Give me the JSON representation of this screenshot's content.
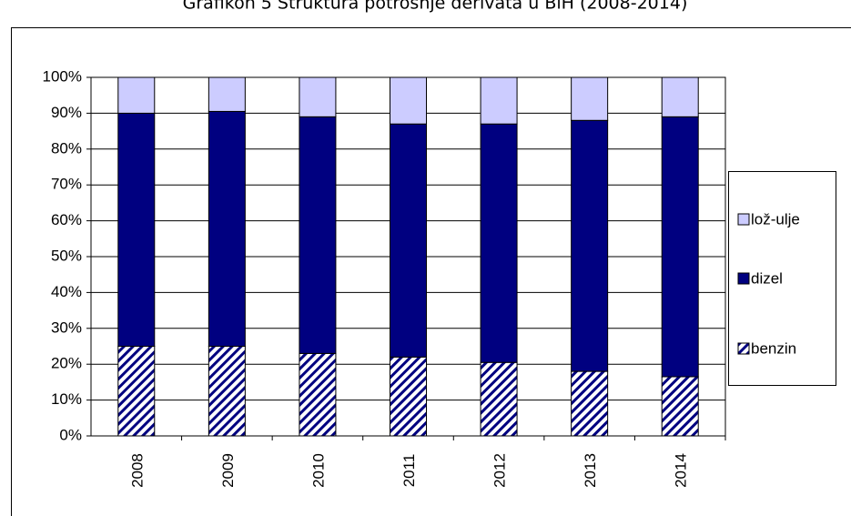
{
  "chart_data": {
    "type": "bar",
    "stacked": true,
    "title": "Grafikon 5 Struktura potrošnje derivata u BiH (2008-2014)",
    "categories": [
      "2008",
      "2009",
      "2010",
      "2011",
      "2012",
      "2013",
      "2014"
    ],
    "series": [
      {
        "name": "benzin",
        "color": "#000080",
        "pattern": "hatch",
        "values": [
          25,
          25,
          23,
          22,
          20.5,
          18,
          16.5
        ]
      },
      {
        "name": "dizel",
        "color": "#000080",
        "values": [
          65,
          65.5,
          66,
          65,
          66.5,
          70,
          72.5
        ]
      },
      {
        "name": "lož-ulje",
        "color": "#ccccff",
        "values": [
          10,
          9.5,
          11,
          13,
          13,
          12,
          11
        ]
      }
    ],
    "ylim": [
      0,
      100
    ],
    "yticks": [
      {
        "value": 0,
        "label": "0%"
      },
      {
        "value": 10,
        "label": "10%"
      },
      {
        "value": 20,
        "label": "20%"
      },
      {
        "value": 30,
        "label": "30%"
      },
      {
        "value": 40,
        "label": "40%"
      },
      {
        "value": 50,
        "label": "50%"
      },
      {
        "value": 60,
        "label": "60%"
      },
      {
        "value": 70,
        "label": "70%"
      },
      {
        "value": 80,
        "label": "80%"
      },
      {
        "value": 90,
        "label": "90%"
      },
      {
        "value": 100,
        "label": "100%"
      }
    ],
    "grid": true,
    "legend": "right"
  }
}
